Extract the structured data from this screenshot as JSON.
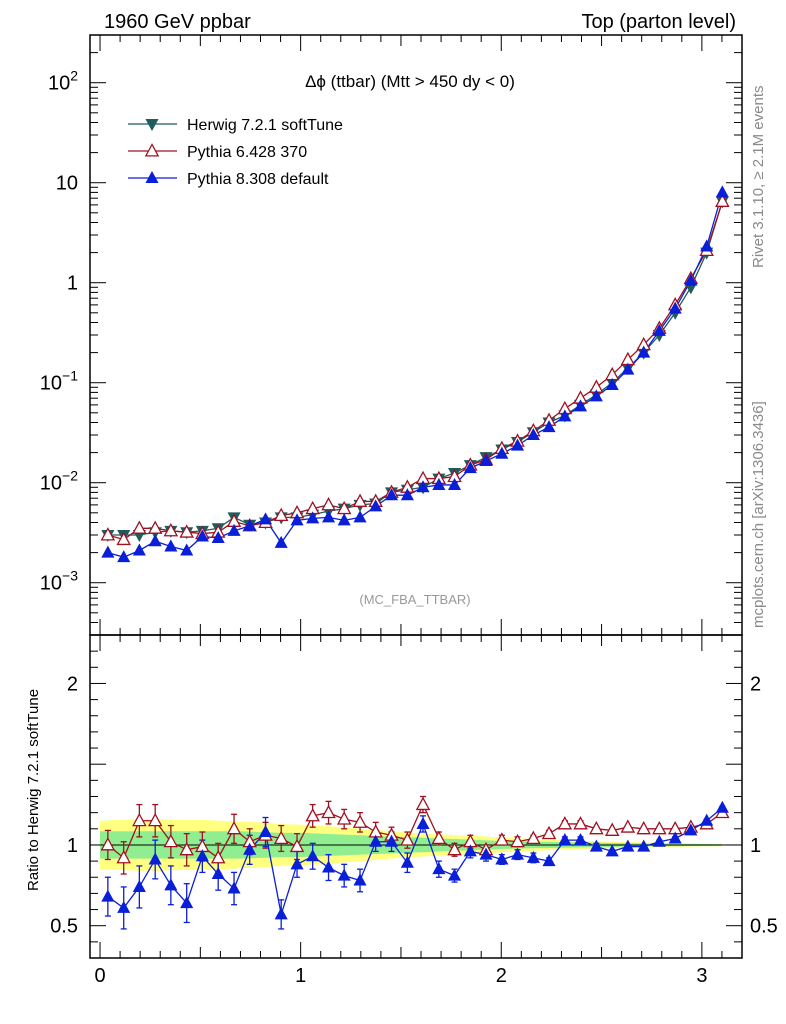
{
  "header": {
    "left": "1960 GeV ppbar",
    "right": "Top (parton level)"
  },
  "side": {
    "rivet": "Rivet 3.1.10, ≥ 2.1M events",
    "mcplots": "mcplots.cern.ch [arXiv:1306.3436]"
  },
  "chart_data": [
    {
      "type": "line",
      "title": "Δϕ (ttbar) (Mtt > 450 dy < 0)",
      "watermark": "(MC_FBA_TTBAR)",
      "yscale": "log",
      "ylim": [
        0.0003,
        300
      ],
      "xlim": [
        -0.05,
        3.2
      ],
      "yticks": [
        {
          "v": 0.001,
          "base": "10",
          "exp": "−3"
        },
        {
          "v": 0.01,
          "base": "10",
          "exp": "−2"
        },
        {
          "v": 0.1,
          "base": "10",
          "exp": "−1"
        },
        {
          "v": 1,
          "base": "1",
          "exp": ""
        },
        {
          "v": 10,
          "base": "10",
          "exp": ""
        },
        {
          "v": 100,
          "base": "10",
          "exp": "2"
        }
      ],
      "legend_position": "top-left",
      "x": [
        0.039,
        0.118,
        0.196,
        0.275,
        0.353,
        0.432,
        0.51,
        0.589,
        0.668,
        0.746,
        0.825,
        0.903,
        0.982,
        1.06,
        1.139,
        1.217,
        1.296,
        1.374,
        1.453,
        1.532,
        1.61,
        1.689,
        1.767,
        1.846,
        1.924,
        2.003,
        2.081,
        2.16,
        2.238,
        2.317,
        2.395,
        2.474,
        2.553,
        2.631,
        2.71,
        2.788,
        2.867,
        2.945,
        3.024,
        3.102
      ],
      "series": [
        {
          "name": "Herwig 7.2.1 softTune",
          "color": "#1f5c5c",
          "marker": "triangle-down-filled",
          "values": [
            0.003,
            0.003,
            0.003,
            0.0032,
            0.0033,
            0.0032,
            0.0033,
            0.0035,
            0.0045,
            0.0038,
            0.004,
            0.0045,
            0.0045,
            0.0048,
            0.0052,
            0.0055,
            0.006,
            0.0062,
            0.008,
            0.0085,
            0.009,
            0.011,
            0.0125,
            0.015,
            0.018,
            0.0215,
            0.0255,
            0.032,
            0.04,
            0.047,
            0.06,
            0.076,
            0.1,
            0.14,
            0.2,
            0.3,
            0.5,
            0.9,
            2.0,
            6.5
          ]
        },
        {
          "name": "Pythia 6.428 370",
          "color": "#a01020",
          "marker": "triangle-up-open",
          "values": [
            0.003,
            0.0027,
            0.0035,
            0.0035,
            0.0033,
            0.0032,
            0.0031,
            0.0032,
            0.0041,
            0.0037,
            0.004,
            0.0047,
            0.005,
            0.0055,
            0.006,
            0.0055,
            0.0065,
            0.0065,
            0.008,
            0.009,
            0.011,
            0.011,
            0.0115,
            0.015,
            0.017,
            0.022,
            0.026,
            0.033,
            0.042,
            0.055,
            0.07,
            0.09,
            0.12,
            0.17,
            0.24,
            0.35,
            0.6,
            1.1,
            2.1,
            6.5
          ]
        },
        {
          "name": "Pythia 8.308 default",
          "color": "#0a1fd8",
          "marker": "triangle-up-filled",
          "values": [
            0.002,
            0.0018,
            0.0021,
            0.0026,
            0.0023,
            0.0021,
            0.0029,
            0.0028,
            0.0033,
            0.0037,
            0.0043,
            0.0025,
            0.0042,
            0.0044,
            0.0045,
            0.0042,
            0.0045,
            0.0058,
            0.0075,
            0.0075,
            0.009,
            0.0095,
            0.0095,
            0.014,
            0.0165,
            0.0195,
            0.0235,
            0.03,
            0.036,
            0.046,
            0.058,
            0.073,
            0.095,
            0.135,
            0.2,
            0.33,
            0.55,
            1.05,
            2.3,
            8.0
          ]
        }
      ]
    },
    {
      "type": "line",
      "ylabel": "Ratio to Herwig 7.2.1 softTune",
      "ylim": [
        0.3,
        2.3
      ],
      "xlim": [
        -0.05,
        3.2
      ],
      "yticks": [
        0.5,
        1,
        2
      ],
      "yticklabels": [
        "0.5",
        "1",
        "2"
      ],
      "xticks": [
        0,
        1,
        2,
        3
      ],
      "xticklabels": [
        "0",
        "1",
        "2",
        "3"
      ],
      "band_colors": {
        "inner": "#90ee90",
        "outer": "#ffff80"
      },
      "band": {
        "x": [
          0.0,
          0.1,
          0.2,
          0.3,
          0.4,
          0.5,
          0.6,
          0.7,
          0.8,
          0.9,
          1.0,
          1.1,
          1.2,
          1.3,
          1.4,
          1.5,
          1.6,
          1.7,
          1.8,
          1.9,
          2.0,
          2.1,
          2.2,
          2.3,
          2.4,
          2.5,
          2.6,
          2.7,
          2.8,
          2.9,
          3.0,
          3.1
        ],
        "inner": [
          0.085,
          0.085,
          0.085,
          0.085,
          0.085,
          0.085,
          0.085,
          0.085,
          0.08,
          0.075,
          0.075,
          0.07,
          0.065,
          0.06,
          0.055,
          0.05,
          0.045,
          0.04,
          0.035,
          0.03,
          0.025,
          0.022,
          0.02,
          0.018,
          0.015,
          0.013,
          0.011,
          0.009,
          0.008,
          0.007,
          0.006,
          0.005
        ],
        "outer": [
          0.15,
          0.155,
          0.16,
          0.16,
          0.155,
          0.155,
          0.15,
          0.145,
          0.14,
          0.13,
          0.125,
          0.12,
          0.11,
          0.1,
          0.09,
          0.08,
          0.072,
          0.065,
          0.06,
          0.055,
          0.045,
          0.04,
          0.035,
          0.03,
          0.025,
          0.022,
          0.019,
          0.016,
          0.013,
          0.011,
          0.009,
          0.008
        ]
      },
      "series": [
        {
          "name": "Pythia 6.428 370",
          "color": "#a01020",
          "marker": "triangle-up-open",
          "values": [
            1.0,
            0.92,
            1.15,
            1.15,
            1.02,
            0.97,
            0.99,
            0.92,
            1.1,
            1.02,
            1.06,
            1.04,
            0.99,
            1.18,
            1.2,
            1.16,
            1.14,
            1.08,
            1.06,
            1.03,
            1.25,
            1.04,
            0.97,
            1.02,
            0.97,
            1.03,
            1.02,
            1.04,
            1.07,
            1.13,
            1.13,
            1.1,
            1.09,
            1.11,
            1.1,
            1.1,
            1.1,
            1.11,
            1.13,
            1.2
          ],
          "err": [
            0.09,
            0.1,
            0.1,
            0.1,
            0.1,
            0.1,
            0.09,
            0.09,
            0.09,
            0.08,
            0.08,
            0.08,
            0.08,
            0.07,
            0.07,
            0.06,
            0.06,
            0.06,
            0.05,
            0.05,
            0.05,
            0.04,
            0.04,
            0.04,
            0.03,
            0.03,
            0.03,
            0.02,
            0.02,
            0.02,
            0.02,
            0.01,
            0.01,
            0.01,
            0.01,
            0.01,
            0.01,
            0.01,
            0.01,
            0.01
          ]
        },
        {
          "name": "Pythia 8.308 default",
          "color": "#0a1fd8",
          "marker": "triangle-up-filled",
          "values": [
            0.68,
            0.61,
            0.74,
            0.91,
            0.75,
            0.64,
            0.93,
            0.82,
            0.73,
            0.97,
            1.08,
            0.57,
            0.88,
            0.93,
            0.86,
            0.81,
            0.78,
            1.02,
            1.02,
            0.89,
            1.13,
            0.85,
            0.81,
            0.96,
            0.94,
            0.91,
            0.94,
            0.92,
            0.9,
            1.03,
            1.03,
            0.99,
            0.96,
            0.99,
            0.99,
            1.02,
            1.04,
            1.09,
            1.15,
            1.23
          ],
          "err": [
            0.12,
            0.13,
            0.13,
            0.12,
            0.12,
            0.12,
            0.1,
            0.1,
            0.1,
            0.09,
            0.09,
            0.09,
            0.08,
            0.08,
            0.08,
            0.07,
            0.07,
            0.06,
            0.06,
            0.06,
            0.05,
            0.05,
            0.04,
            0.04,
            0.04,
            0.03,
            0.03,
            0.03,
            0.02,
            0.02,
            0.02,
            0.02,
            0.01,
            0.01,
            0.01,
            0.01,
            0.01,
            0.01,
            0.01,
            0.01
          ]
        }
      ]
    }
  ]
}
